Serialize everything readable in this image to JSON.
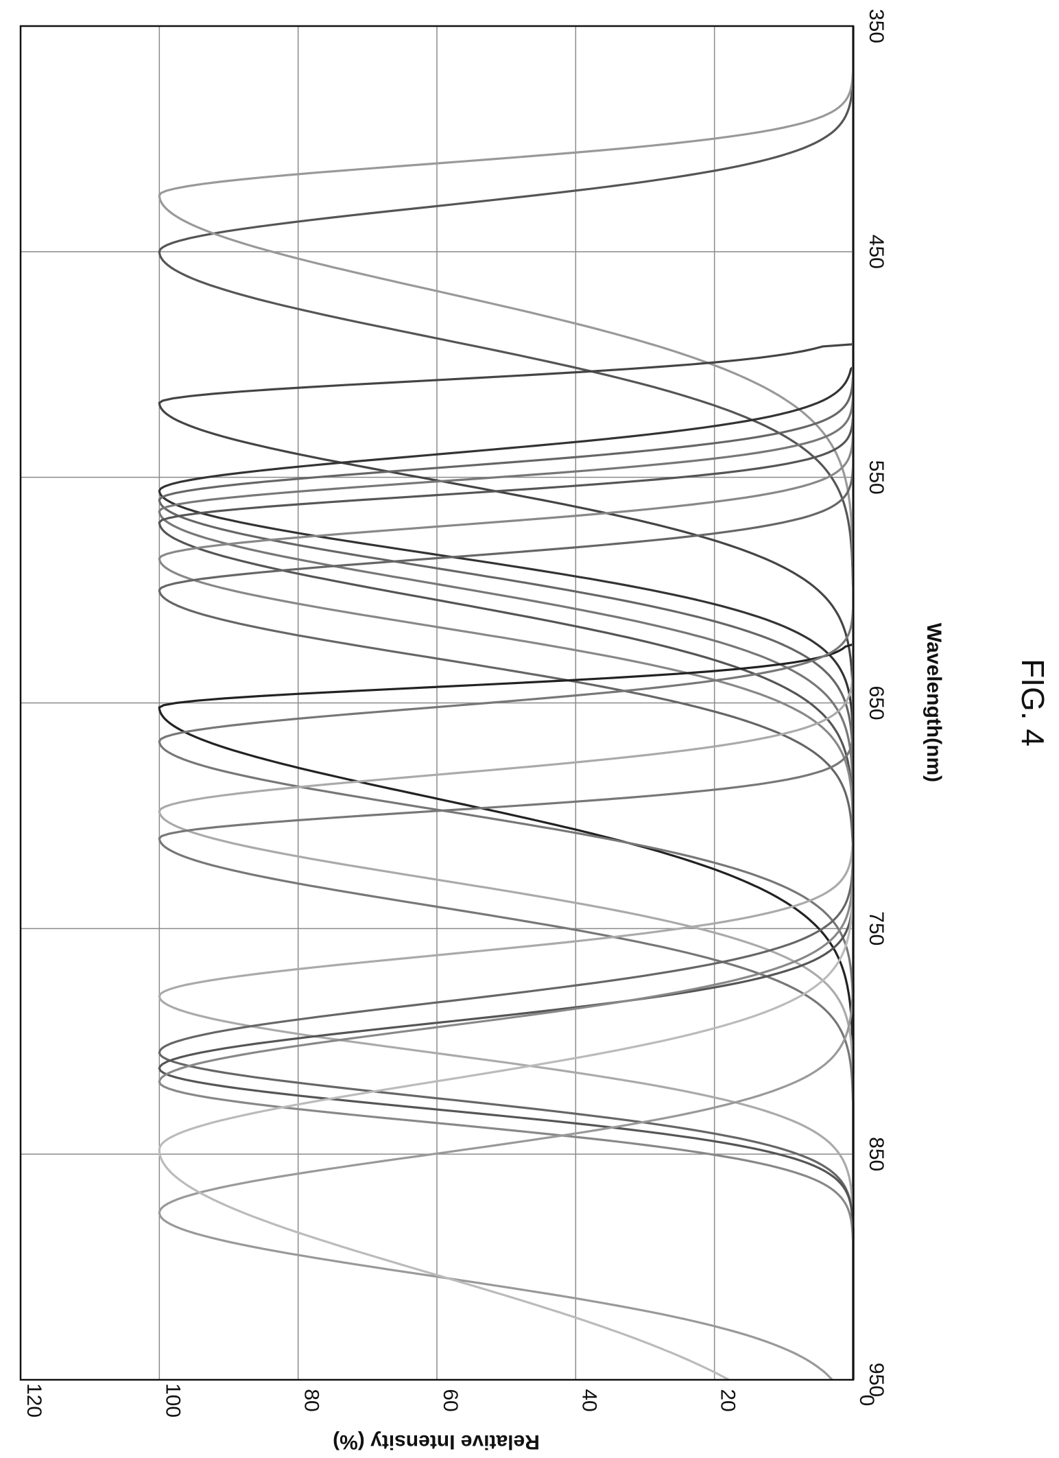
{
  "figure": {
    "caption": "FIG. 4"
  },
  "chart_data": {
    "type": "line",
    "title": "",
    "xlabel": "Wavelength(nm)",
    "ylabel": "Relative Intensity (%)",
    "xlim": [
      350,
      950
    ],
    "ylim": [
      0,
      120
    ],
    "x_ticks": [
      350,
      450,
      550,
      650,
      750,
      850,
      950
    ],
    "y_ticks": [
      0,
      20,
      40,
      60,
      80,
      100,
      120
    ],
    "grid": true,
    "orientation": "rotated-90-clockwise",
    "series": [
      {
        "color": "#555555",
        "peak": 450,
        "left_width": 20,
        "right_width": 38,
        "floor_at": 0
      },
      {
        "color": "#999999",
        "peak": 425,
        "left_width": 14,
        "right_width": 42
      },
      {
        "color": "#444444",
        "peak": 517,
        "left_width": 10,
        "right_width": 34,
        "cutoff": 492
      },
      {
        "color": "#333333",
        "peak": 556,
        "left_width": 16,
        "right_width": 28,
        "cutoff": 502
      },
      {
        "color": "#666666",
        "peak": 560,
        "left_width": 14,
        "right_width": 30
      },
      {
        "color": "#777777",
        "peak": 565,
        "left_width": 13,
        "right_width": 32
      },
      {
        "color": "#555555",
        "peak": 570,
        "left_width": 12,
        "right_width": 34
      },
      {
        "color": "#888888",
        "peak": 586,
        "left_width": 14,
        "right_width": 30
      },
      {
        "color": "#666666",
        "peak": 600,
        "left_width": 14,
        "right_width": 30
      },
      {
        "color": "#222222",
        "peak": 652,
        "left_width": 9,
        "right_width": 40,
        "cutoff": 625
      },
      {
        "color": "#777777",
        "peak": 667,
        "left_width": 15,
        "right_width": 30
      },
      {
        "color": "#aaaaaa",
        "peak": 698,
        "left_width": 16,
        "right_width": 30
      },
      {
        "color": "#777777",
        "peak": 710,
        "left_width": 12,
        "right_width": 30
      },
      {
        "color": "#aaaaaa",
        "peak": 780,
        "left_width": 18,
        "right_width": 25
      },
      {
        "color": "#666666",
        "peak": 805,
        "left_width": 22,
        "right_width": 20
      },
      {
        "color": "#555555",
        "peak": 812,
        "left_width": 20,
        "right_width": 18
      },
      {
        "color": "#888888",
        "peak": 818,
        "left_width": 24,
        "right_width": 18
      },
      {
        "color": "#999999",
        "peak": 876,
        "left_width": 26,
        "right_width": 28
      },
      {
        "color": "#bbbbbb",
        "peak": 848,
        "left_width": 30,
        "right_width": 55
      }
    ]
  }
}
